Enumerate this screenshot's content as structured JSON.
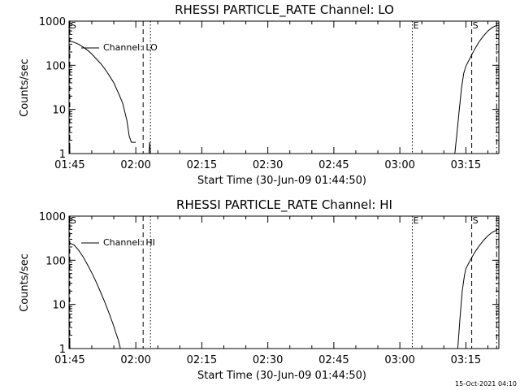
{
  "chart_data": [
    {
      "type": "line",
      "title": "RHESSI PARTICLE_RATE Channel: LO",
      "xlabel": "Start Time (30-Jun-09 01:44:50)",
      "ylabel": "Counts/sec",
      "ylog": true,
      "ylim": [
        1,
        1000
      ],
      "xlim": [
        "01:44:50",
        "03:22:30"
      ],
      "xticks": [
        "01:45",
        "02:00",
        "02:15",
        "02:30",
        "02:45",
        "03:00",
        "03:15"
      ],
      "yticks": [
        "1",
        "10",
        "100",
        "1000"
      ],
      "legend": {
        "label": "Channel: LO",
        "placement": "top-left"
      },
      "series": [
        {
          "name": "Channel: LO",
          "segments": [
            [
              [
                "01:44:50",
                360
              ],
              [
                "01:46:00",
                330
              ],
              [
                "01:47:00",
                300
              ],
              [
                "01:48:00",
                260
              ],
              [
                "01:49:00",
                220
              ],
              [
                "01:50:00",
                180
              ],
              [
                "01:51:00",
                140
              ],
              [
                "01:52:00",
                110
              ],
              [
                "01:53:00",
                82
              ],
              [
                "01:54:00",
                58
              ],
              [
                "01:55:00",
                40
              ],
              [
                "01:56:00",
                24
              ],
              [
                "01:57:00",
                14
              ],
              [
                "01:58:00",
                5.5
              ],
              [
                "01:58:30",
                2.5
              ],
              [
                "01:59:00",
                1.8
              ],
              [
                "02:00:00",
                1.8
              ]
            ],
            [
              [
                "02:03:00",
                1
              ],
              [
                "02:03:10",
                1.8
              ],
              [
                "02:03:20",
                1
              ]
            ],
            [
              [
                "03:12:30",
                1
              ],
              [
                "03:13:00",
                3
              ],
              [
                "03:13:30",
                10
              ],
              [
                "03:14:00",
                30
              ],
              [
                "03:14:30",
                65
              ],
              [
                "03:15:00",
                95
              ],
              [
                "03:16:00",
                150
              ],
              [
                "03:17:00",
                230
              ],
              [
                "03:18:00",
                340
              ],
              [
                "03:19:00",
                460
              ],
              [
                "03:20:00",
                600
              ],
              [
                "03:21:00",
                720
              ],
              [
                "03:22:00",
                800
              ]
            ]
          ]
        }
      ],
      "markers": [
        {
          "label": "S",
          "time": "01:45:00",
          "style": "dashed"
        },
        {
          "label": "",
          "time": "02:01:40",
          "style": "dashed"
        },
        {
          "label": "",
          "time": "02:03:20",
          "style": "dotted"
        },
        {
          "label": "E",
          "time": "03:02:50",
          "style": "dotted"
        },
        {
          "label": "S",
          "time": "03:16:20",
          "style": "dashed"
        },
        {
          "label": "",
          "time": "03:22:00",
          "style": "dashdot"
        }
      ]
    },
    {
      "type": "line",
      "title": "RHESSI PARTICLE_RATE Channel: HI",
      "xlabel": "Start Time (30-Jun-09 01:44:50)",
      "ylabel": "Counts/sec",
      "ylog": true,
      "ylim": [
        1,
        1000
      ],
      "xlim": [
        "01:44:50",
        "03:22:30"
      ],
      "xticks": [
        "01:45",
        "02:00",
        "02:15",
        "02:30",
        "02:45",
        "03:00",
        "03:15"
      ],
      "yticks": [
        "1",
        "10",
        "100",
        "1000"
      ],
      "legend": {
        "label": "Channel: HI",
        "placement": "top-left"
      },
      "series": [
        {
          "name": "Channel: HI",
          "segments": [
            [
              [
                "01:44:50",
                250
              ],
              [
                "01:46:00",
                220
              ],
              [
                "01:47:00",
                170
              ],
              [
                "01:48:00",
                120
              ],
              [
                "01:49:00",
                80
              ],
              [
                "01:50:00",
                52
              ],
              [
                "01:51:00",
                32
              ],
              [
                "01:52:00",
                19
              ],
              [
                "01:53:00",
                11
              ],
              [
                "01:54:00",
                6
              ],
              [
                "01:55:00",
                3.2
              ],
              [
                "01:55:30",
                2.2
              ],
              [
                "01:56:00",
                1.6
              ],
              [
                "01:56:30",
                1
              ]
            ],
            [
              [
                "03:13:10",
                1
              ],
              [
                "03:13:40",
                5
              ],
              [
                "03:14:10",
                20
              ],
              [
                "03:14:40",
                45
              ],
              [
                "03:15:00",
                65
              ],
              [
                "03:16:00",
                100
              ],
              [
                "03:17:00",
                150
              ],
              [
                "03:18:00",
                210
              ],
              [
                "03:19:00",
                280
              ],
              [
                "03:20:00",
                360
              ],
              [
                "03:21:00",
                430
              ],
              [
                "03:22:00",
                480
              ]
            ]
          ]
        }
      ],
      "markers": [
        {
          "label": "S",
          "time": "01:45:00",
          "style": "dashed"
        },
        {
          "label": "",
          "time": "02:01:40",
          "style": "dashed"
        },
        {
          "label": "",
          "time": "02:03:20",
          "style": "dotted"
        },
        {
          "label": "E",
          "time": "03:02:50",
          "style": "dotted"
        },
        {
          "label": "S",
          "time": "03:16:20",
          "style": "dashed"
        },
        {
          "label": "",
          "time": "03:22:00",
          "style": "dashdot"
        }
      ]
    }
  ],
  "footer": {
    "timestamp": "15-Oct-2021 04:10"
  }
}
